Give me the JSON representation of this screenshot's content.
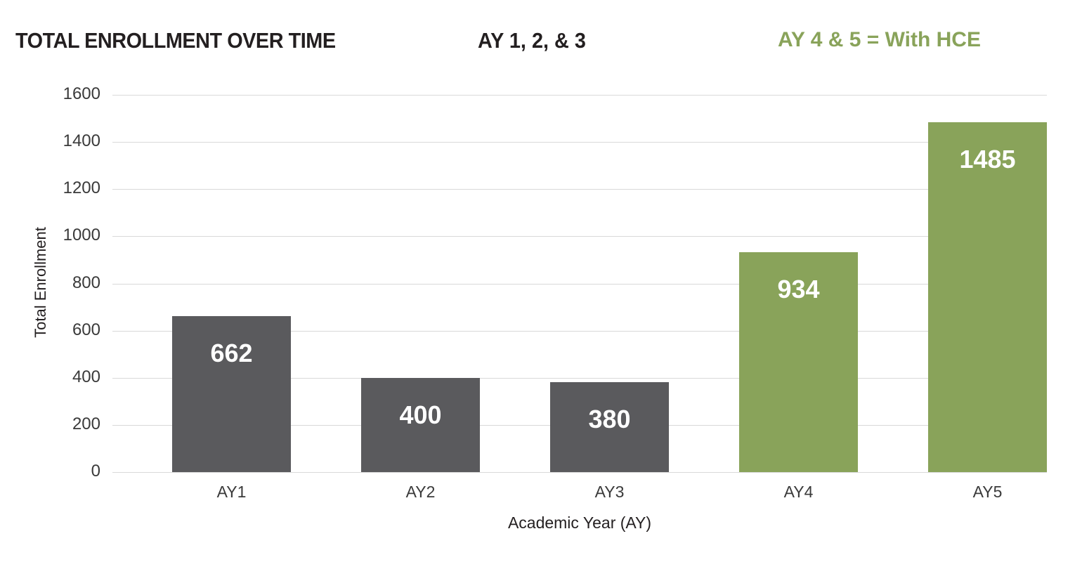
{
  "header": {
    "title": "TOTAL ENROLLMENT OVER TIME",
    "subtitle": "AY 1, 2, & 3",
    "note": "AY 4 & 5 = With HCE"
  },
  "colors": {
    "base_bar": "#5a5a5d",
    "hce_bar": "#89a35a",
    "gridline": "#d9d9d9",
    "note_text": "#89a35a"
  },
  "axes": {
    "y_ticks": [
      "0",
      "200",
      "400",
      "600",
      "800",
      "1000",
      "1200",
      "1400",
      "1600"
    ],
    "x_ticks": [
      "AY1",
      "AY2",
      "AY3",
      "AY4",
      "AY5"
    ]
  },
  "chart_data": {
    "type": "bar",
    "title": "TOTAL ENROLLMENT OVER TIME",
    "subtitle": "AY 1, 2, & 3",
    "annotations": [
      "AY 4 & 5 = With HCE"
    ],
    "xlabel": "Academic Year (AY)",
    "ylabel": "Total Enrollment",
    "categories": [
      "AY1",
      "AY2",
      "AY3",
      "AY4",
      "AY5"
    ],
    "values": [
      662,
      400,
      380,
      934,
      1485
    ],
    "value_labels": [
      "662",
      "400",
      "380",
      "934",
      "1485"
    ],
    "bar_colors": [
      "#5a5a5d",
      "#5a5a5d",
      "#5a5a5d",
      "#89a35a",
      "#89a35a"
    ],
    "ylim": [
      0,
      1600
    ],
    "y_tick_step": 200,
    "grid": true,
    "legend": false
  }
}
